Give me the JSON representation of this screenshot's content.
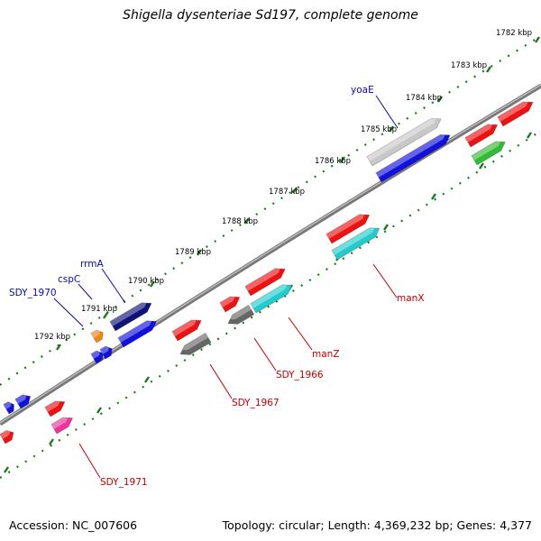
{
  "title": "Shigella dysenteriae Sd197, complete genome",
  "footer": {
    "accession": "Accession: NC_007606",
    "summary": "Topology: circular; Length: 4,369,232 bp; Genes: 4,377"
  },
  "colors": {
    "backbone": "#8a8a8a",
    "ticks": "#1a7a1a",
    "label_forward": "#0a0aa8",
    "label_reverse": "#c00000",
    "red": "#ee1111",
    "blue": "#1111dd",
    "navy": "#11117a",
    "silver": "#c8c8c8",
    "cyan": "#22cccc",
    "grey": "#666666",
    "green": "#33bb33",
    "orange": "#ee8811",
    "pink": "#ee3399"
  },
  "ruler_labels": [
    "1782 kbp",
    "1783 kbp",
    "1784 kbp",
    "1785 kbp",
    "1786 kbp",
    "1787 kbp",
    "1788 kbp",
    "1789 kbp",
    "1790 kbp",
    "1791 kbp",
    "1792 kbp"
  ],
  "gene_labels": {
    "yoaE": "yoaE",
    "rrmA": "rrmA",
    "cspC": "cspC",
    "SDY_1970": "SDY_1970",
    "manX": "manX",
    "manZ": "manZ",
    "SDY_1966": "SDY_1966",
    "SDY_1967": "SDY_1967",
    "SDY_1971": "SDY_1971"
  }
}
